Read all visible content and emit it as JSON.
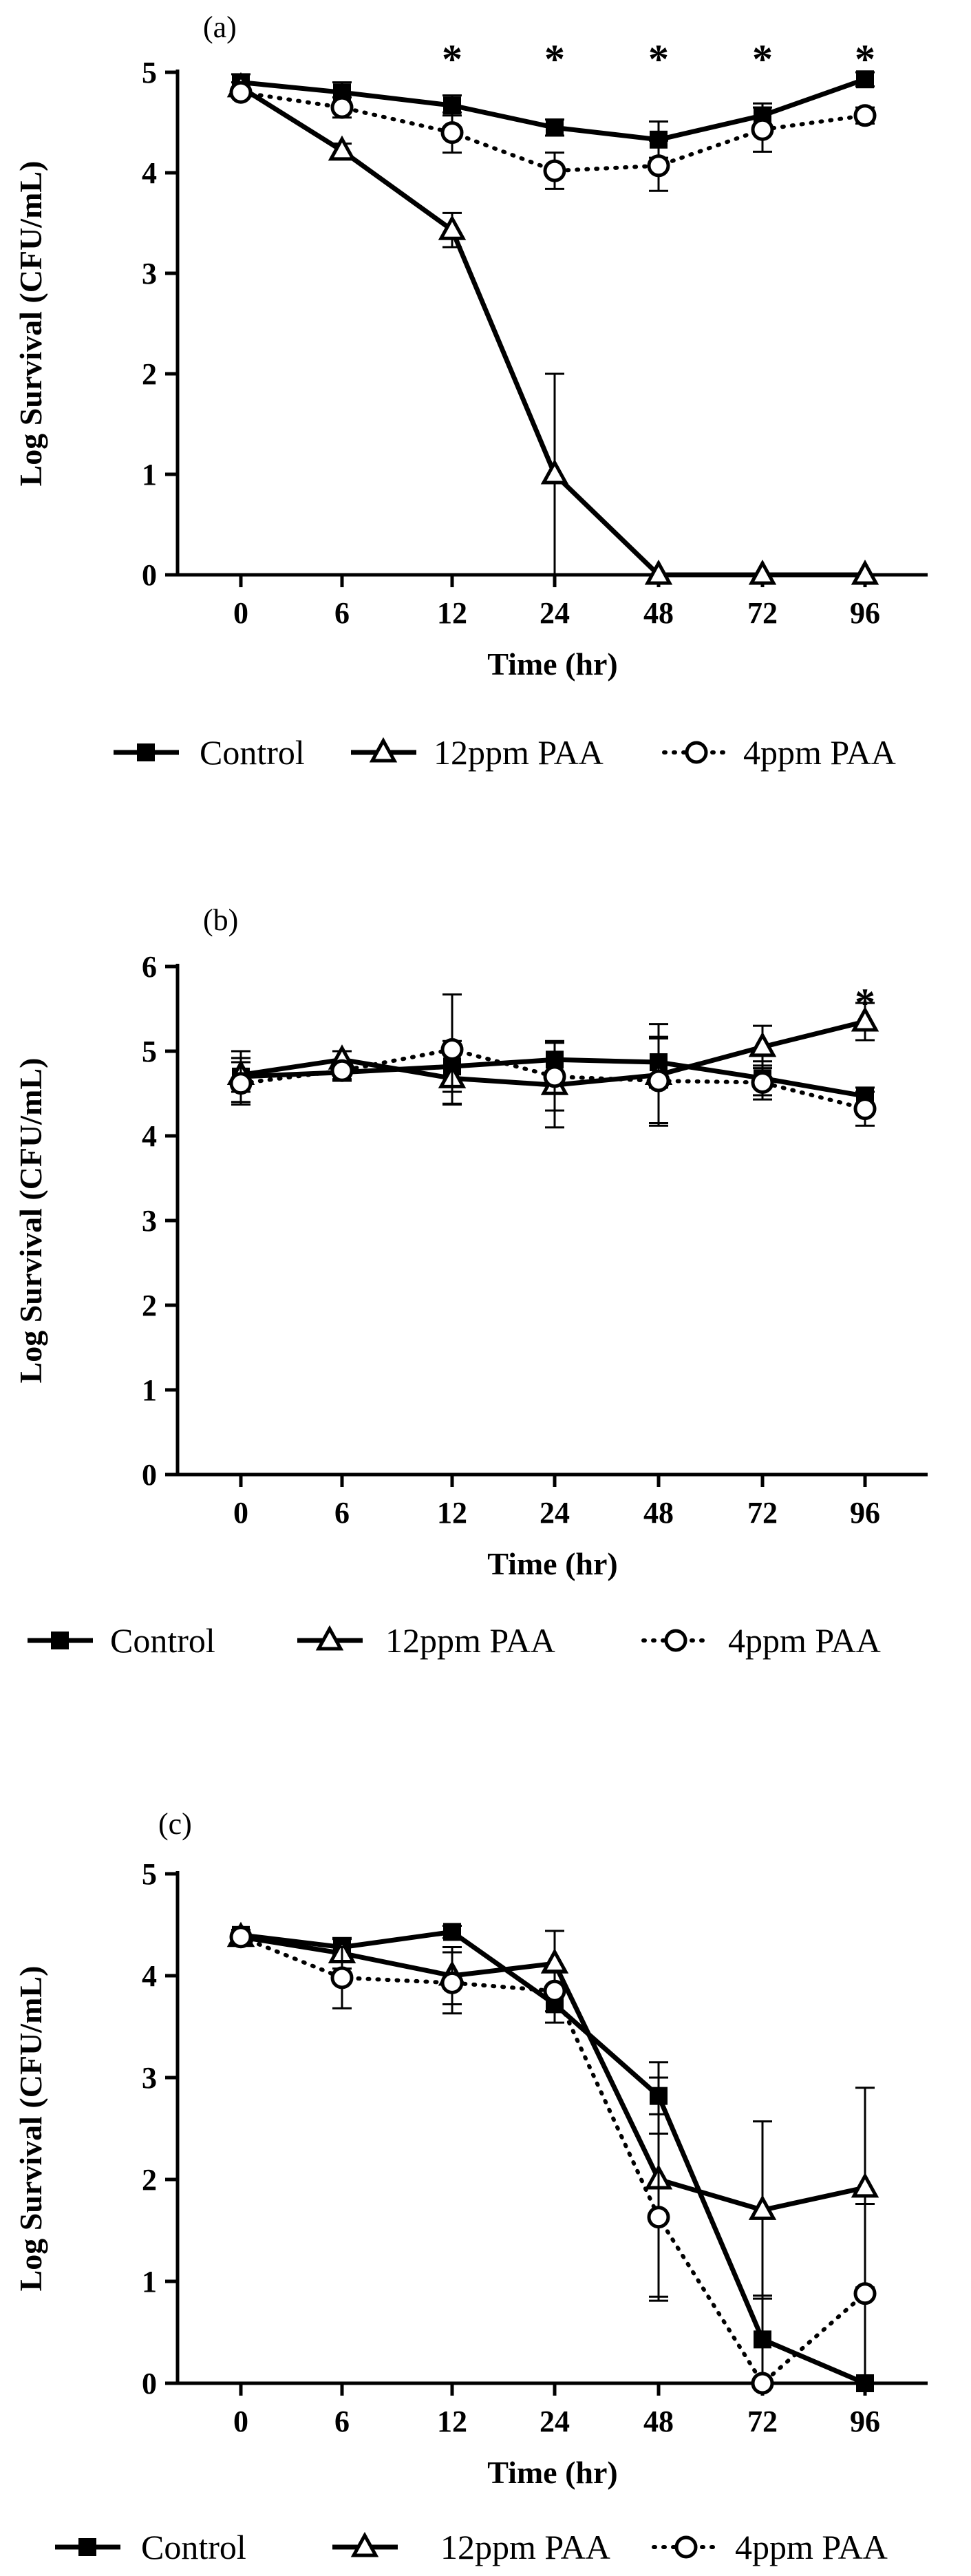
{
  "chart_data": [
    {
      "type": "line",
      "panel_label": "(a)",
      "xlabel": "Time (hr)",
      "ylabel": "Log Survival (CFU/mL)",
      "categories": [
        "0",
        "6",
        "12",
        "24",
        "48",
        "72",
        "96"
      ],
      "ylim": [
        0,
        5
      ],
      "yticks": [
        "0",
        "1",
        "2",
        "3",
        "4",
        "5"
      ],
      "significance": [
        {
          "category": "12",
          "label": "*",
          "value": 5.2
        },
        {
          "category": "24",
          "label": "*",
          "value": 5.2
        },
        {
          "category": "48",
          "label": "*",
          "value": 5.2
        },
        {
          "category": "72",
          "label": "*",
          "value": 5.2
        },
        {
          "category": "96",
          "label": "*",
          "value": 5.2
        }
      ],
      "series": [
        {
          "name": "Control",
          "marker": "square",
          "line": "solid",
          "values": [
            4.9,
            4.8,
            4.67,
            4.45,
            4.33,
            4.57,
            4.93
          ],
          "errors": [
            0.08,
            0.1,
            0.1,
            0.08,
            0.18,
            0.12,
            0.07
          ]
        },
        {
          "name": "12ppm PAA",
          "marker": "triangle",
          "line": "solid",
          "values": [
            4.85,
            4.22,
            3.43,
            1.0,
            0.0,
            0.0,
            0.0
          ],
          "errors": [
            0.05,
            0.07,
            0.17,
            1.0,
            0.0,
            0.0,
            0.0
          ]
        },
        {
          "name": "4ppm PAA",
          "marker": "circle",
          "line": "dotted",
          "values": [
            4.8,
            4.65,
            4.4,
            4.02,
            4.07,
            4.43,
            4.57
          ],
          "errors": [
            0.05,
            0.1,
            0.2,
            0.18,
            0.25,
            0.22,
            0.08
          ]
        }
      ],
      "legend": [
        "Control",
        "12ppm PAA",
        "4ppm PAA"
      ]
    },
    {
      "type": "line",
      "panel_label": "(b)",
      "xlabel": "Time (hr)",
      "ylabel": "Log Survival (CFU/mL)",
      "categories": [
        "0",
        "6",
        "12",
        "24",
        "48",
        "72",
        "96"
      ],
      "ylim": [
        0,
        6
      ],
      "yticks": [
        "0",
        "1",
        "2",
        "3",
        "4",
        "5",
        "6"
      ],
      "significance": [
        {
          "category": "96",
          "label": "*",
          "value": 5.65
        }
      ],
      "series": [
        {
          "name": "Control",
          "marker": "square",
          "line": "solid",
          "values": [
            4.7,
            4.75,
            4.82,
            4.9,
            4.87,
            4.68,
            4.47
          ],
          "errors": [
            0.3,
            0.1,
            0.3,
            0.22,
            0.3,
            0.2,
            0.1
          ]
        },
        {
          "name": "12ppm PAA",
          "marker": "triangle",
          "line": "solid",
          "values": [
            4.72,
            4.9,
            4.68,
            4.6,
            4.72,
            5.05,
            5.35
          ],
          "errors": [
            0.2,
            0.1,
            0.3,
            0.5,
            0.6,
            0.25,
            0.22
          ]
        },
        {
          "name": "4ppm PAA",
          "marker": "circle",
          "line": "dotted",
          "values": [
            4.62,
            4.77,
            5.02,
            4.7,
            4.65,
            4.63,
            4.32
          ],
          "errors": [
            0.25,
            0.1,
            0.65,
            0.4,
            0.5,
            0.2,
            0.2
          ]
        }
      ],
      "legend": [
        "Control",
        "12ppm PAA",
        "4ppm PAA"
      ]
    },
    {
      "type": "line",
      "panel_label": "(c)",
      "xlabel": "Time (hr)",
      "ylabel": "Log Survival (CFU/mL)",
      "categories": [
        "0",
        "6",
        "12",
        "24",
        "48",
        "72",
        "96"
      ],
      "ylim": [
        0,
        5
      ],
      "yticks": [
        "0",
        "1",
        "2",
        "3",
        "4",
        "5"
      ],
      "significance": [],
      "series": [
        {
          "name": "Control",
          "marker": "square",
          "line": "solid",
          "values": [
            4.4,
            4.28,
            4.43,
            3.72,
            2.82,
            0.43,
            0.0
          ],
          "errors": [
            0.05,
            0.08,
            0.06,
            0.18,
            0.18,
            0.43,
            0.0
          ]
        },
        {
          "name": "12ppm PAA",
          "marker": "triangle",
          "line": "solid",
          "values": [
            4.38,
            4.22,
            4.0,
            4.12,
            2.0,
            1.7,
            1.92
          ],
          "errors": [
            0.05,
            0.15,
            0.28,
            0.32,
            1.15,
            0.87,
            0.98
          ]
        },
        {
          "name": "4ppm PAA",
          "marker": "circle",
          "line": "dotted",
          "values": [
            4.38,
            3.98,
            3.93,
            3.85,
            1.63,
            0.0,
            0.88
          ],
          "errors": [
            0.05,
            0.3,
            0.3,
            0.2,
            0.82,
            0.0,
            0.88
          ]
        }
      ],
      "legend": [
        "Control",
        "12ppm PAA",
        "4ppm PAA"
      ]
    }
  ]
}
